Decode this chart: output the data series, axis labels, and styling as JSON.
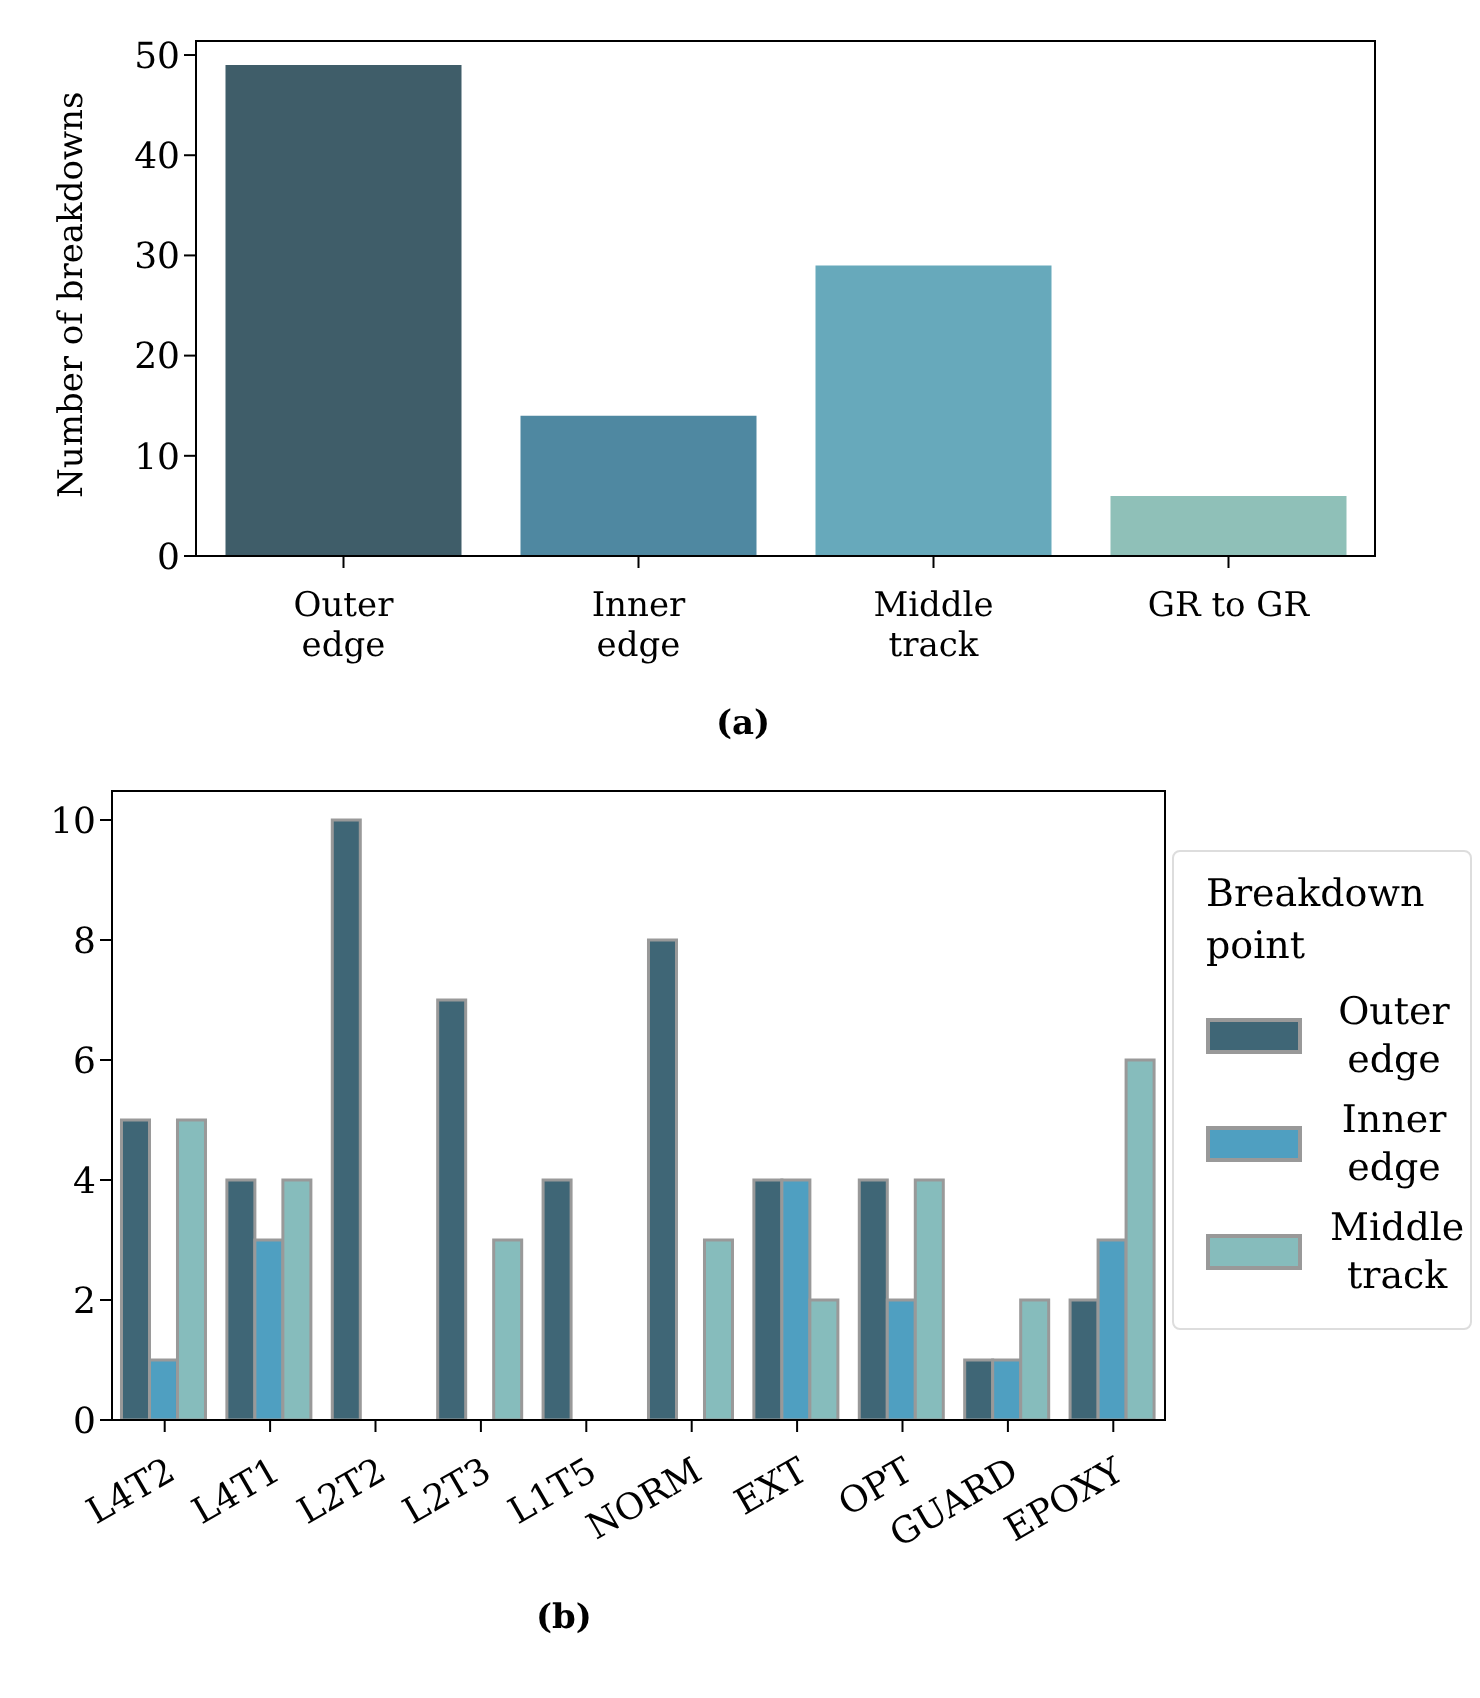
{
  "chart_data": [
    {
      "type": "bar",
      "ylabel": "Number of breakdowns",
      "categories": [
        "Outer edge",
        "Inner edge",
        "Middle track",
        "GR to GR"
      ],
      "values": [
        49,
        14,
        29,
        6
      ],
      "colors": [
        "#3f5d69",
        "#4f88a1",
        "#67a9bb",
        "#8fc0b8"
      ],
      "ylim": [
        0,
        51.5
      ],
      "yticks": [
        0,
        10,
        20,
        30,
        40,
        50
      ],
      "annotations": [
        "(a)"
      ]
    },
    {
      "type": "bar",
      "categories": [
        "L4T2",
        "L4T1",
        "L2T2",
        "L2T3",
        "L1T5",
        "NORM",
        "EXT",
        "OPT",
        "GUARD",
        "EPOXY"
      ],
      "series": [
        {
          "name": "Outer edge",
          "color": "#3f6676",
          "values": [
            5,
            4,
            10,
            7,
            4,
            8,
            4,
            4,
            1,
            2
          ]
        },
        {
          "name": "Inner edge",
          "color": "#4f9fc1",
          "values": [
            1,
            3,
            0,
            0,
            0,
            0,
            4,
            2,
            1,
            3
          ]
        },
        {
          "name": "Middle track",
          "color": "#86bcbc",
          "values": [
            5,
            4,
            0,
            3,
            0,
            3,
            2,
            4,
            2,
            6
          ]
        }
      ],
      "legend": "right",
      "legend_title": "Breakdown point",
      "ylim": [
        0,
        10.5
      ],
      "yticks": [
        0,
        2,
        4,
        6,
        8,
        10
      ],
      "annotations": [
        "(b)"
      ]
    }
  ]
}
